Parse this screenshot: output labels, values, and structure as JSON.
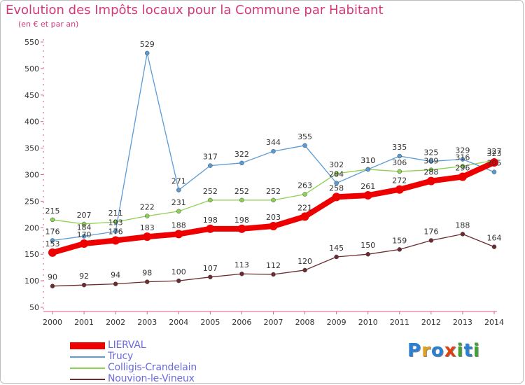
{
  "header": {
    "title": "Evolution des Impôts locaux pour la Commune par Habitant",
    "subtitle": "(en € et par an)"
  },
  "logo": {
    "text": "Proxiti",
    "letters": [
      "P",
      "r",
      "o",
      "x",
      "i",
      "t",
      "i"
    ],
    "colors": [
      "#2a7fd4",
      "#e0a020",
      "#2a7fd4",
      "#e04010",
      "#40a030",
      "#2a7fd4",
      "#40a030"
    ]
  },
  "chart_data": {
    "type": "line",
    "title": "Evolution des Impôts locaux pour la Commune par Habitant",
    "subtitle": "(en € et par an)",
    "xlabel": "",
    "ylabel": "",
    "ylim": [
      50,
      550
    ],
    "yticks": [
      50,
      100,
      150,
      200,
      250,
      300,
      350,
      400,
      450,
      500,
      550
    ],
    "grid": false,
    "legend_position": "bottom-left",
    "categories": [
      "2000",
      "2001",
      "2002",
      "2003",
      "2004",
      "2005",
      "2006",
      "2007",
      "2008",
      "2009",
      "2010",
      "2011",
      "2012",
      "2013",
      "2014"
    ],
    "series": [
      {
        "name": "LIERVAL",
        "color": "#ee0000",
        "values": [
          153,
          170,
          176,
          183,
          188,
          198,
          198,
          203,
          221,
          258,
          261,
          272,
          288,
          296,
          323
        ]
      },
      {
        "name": "Trucy",
        "color": "#5b9bd5",
        "values": [
          176,
          184,
          193,
          529,
          271,
          317,
          322,
          344,
          355,
          284,
          310,
          335,
          325,
          329,
          305
        ]
      },
      {
        "name": "Colligis-Crandelain",
        "color": "#8cd14f",
        "values": [
          215,
          207,
          211,
          222,
          231,
          252,
          252,
          252,
          263,
          302,
          310,
          306,
          309,
          316,
          327
        ]
      },
      {
        "name": "Nouvion-le-Vineux",
        "color": "#6b2b2f",
        "values": [
          90,
          92,
          94,
          98,
          100,
          107,
          113,
          112,
          120,
          145,
          150,
          159,
          176,
          188,
          164
        ]
      }
    ]
  }
}
